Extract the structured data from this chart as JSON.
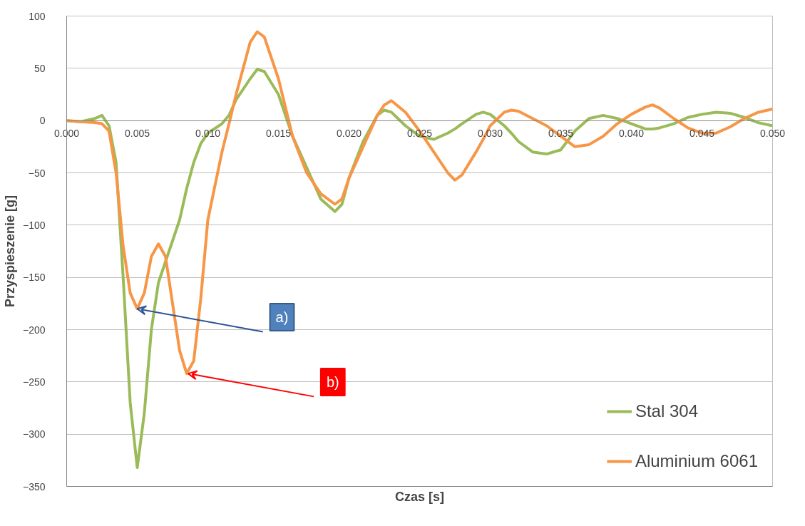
{
  "chart_data": {
    "type": "line",
    "xlabel": "Czas [s]",
    "ylabel": "Przyspieszenie [g]",
    "x": [
      0,
      0.001,
      0.002,
      0.0025,
      0.003,
      0.0035,
      0.004,
      0.0045,
      0.005,
      0.0055,
      0.006,
      0.0065,
      0.007,
      0.0075,
      0.008,
      0.0085,
      0.009,
      0.0095,
      0.01,
      0.011,
      0.0115,
      0.012,
      0.013,
      0.0135,
      0.014,
      0.015,
      0.016,
      0.017,
      0.018,
      0.019,
      0.0195,
      0.02,
      0.021,
      0.022,
      0.0225,
      0.023,
      0.024,
      0.025,
      0.026,
      0.027,
      0.0275,
      0.028,
      0.029,
      0.0295,
      0.03,
      0.031,
      0.0315,
      0.032,
      0.033,
      0.034,
      0.035,
      0.036,
      0.037,
      0.038,
      0.039,
      0.04,
      0.041,
      0.0415,
      0.042,
      0.043,
      0.044,
      0.045,
      0.046,
      0.047,
      0.048,
      0.049,
      0.05
    ],
    "series": [
      {
        "name": "Stal 304",
        "color": "#9bbb59",
        "values": [
          0,
          -1,
          2,
          5,
          -5,
          -40,
          -150,
          -270,
          -332,
          -280,
          -200,
          -155,
          -135,
          -115,
          -95,
          -65,
          -40,
          -22,
          -12,
          -3,
          5,
          20,
          40,
          49,
          47,
          25,
          -15,
          -45,
          -75,
          -87,
          -80,
          -55,
          -20,
          5,
          10,
          8,
          -5,
          -15,
          -18,
          -12,
          -8,
          -3,
          6,
          8,
          6,
          -5,
          -12,
          -20,
          -30,
          -32,
          -28,
          -10,
          2,
          5,
          2,
          -3,
          -8,
          -8,
          -7,
          -3,
          3,
          6,
          8,
          7,
          3,
          -2,
          -5
        ]
      },
      {
        "name": "Aluminium 6061",
        "color": "#f79646",
        "values": [
          0,
          -1,
          -2,
          -3,
          -10,
          -50,
          -120,
          -165,
          -180,
          -165,
          -130,
          -118,
          -130,
          -175,
          -220,
          -242,
          -230,
          -170,
          -95,
          -30,
          -3,
          25,
          75,
          85,
          80,
          40,
          -15,
          -50,
          -70,
          -80,
          -75,
          -55,
          -25,
          5,
          15,
          19,
          8,
          -10,
          -30,
          -50,
          -57,
          -52,
          -30,
          -18,
          -5,
          8,
          10,
          9,
          2,
          -5,
          -15,
          -25,
          -23,
          -15,
          -3,
          6,
          13,
          15,
          12,
          2,
          -7,
          -12,
          -12,
          -6,
          2,
          8,
          11
        ]
      }
    ],
    "xlim": [
      0,
      0.05
    ],
    "ylim": [
      -350,
      100
    ],
    "xticks": [
      {
        "value": 0,
        "label": "0.000"
      },
      {
        "value": 0.005,
        "label": "0.005"
      },
      {
        "value": 0.01,
        "label": "0.010"
      },
      {
        "value": 0.015,
        "label": "0.015"
      },
      {
        "value": 0.02,
        "label": "0.020"
      },
      {
        "value": 0.025,
        "label": "0.025"
      },
      {
        "value": 0.03,
        "label": "0.030"
      },
      {
        "value": 0.035,
        "label": "0.035"
      },
      {
        "value": 0.04,
        "label": "0.040"
      },
      {
        "value": 0.045,
        "label": "0.045"
      },
      {
        "value": 0.05,
        "label": "0.050"
      }
    ],
    "yticks": [
      -350,
      -300,
      -250,
      -200,
      -150,
      -100,
      -50,
      0,
      50,
      100
    ],
    "annotations": [
      {
        "text": "a)",
        "x": 0.005,
        "y": -180
      },
      {
        "text": "b)",
        "x": 0.0086,
        "y": -242
      }
    ],
    "grid": true,
    "legend": "bottom right",
    "marker": "none",
    "line_style": "solid"
  }
}
